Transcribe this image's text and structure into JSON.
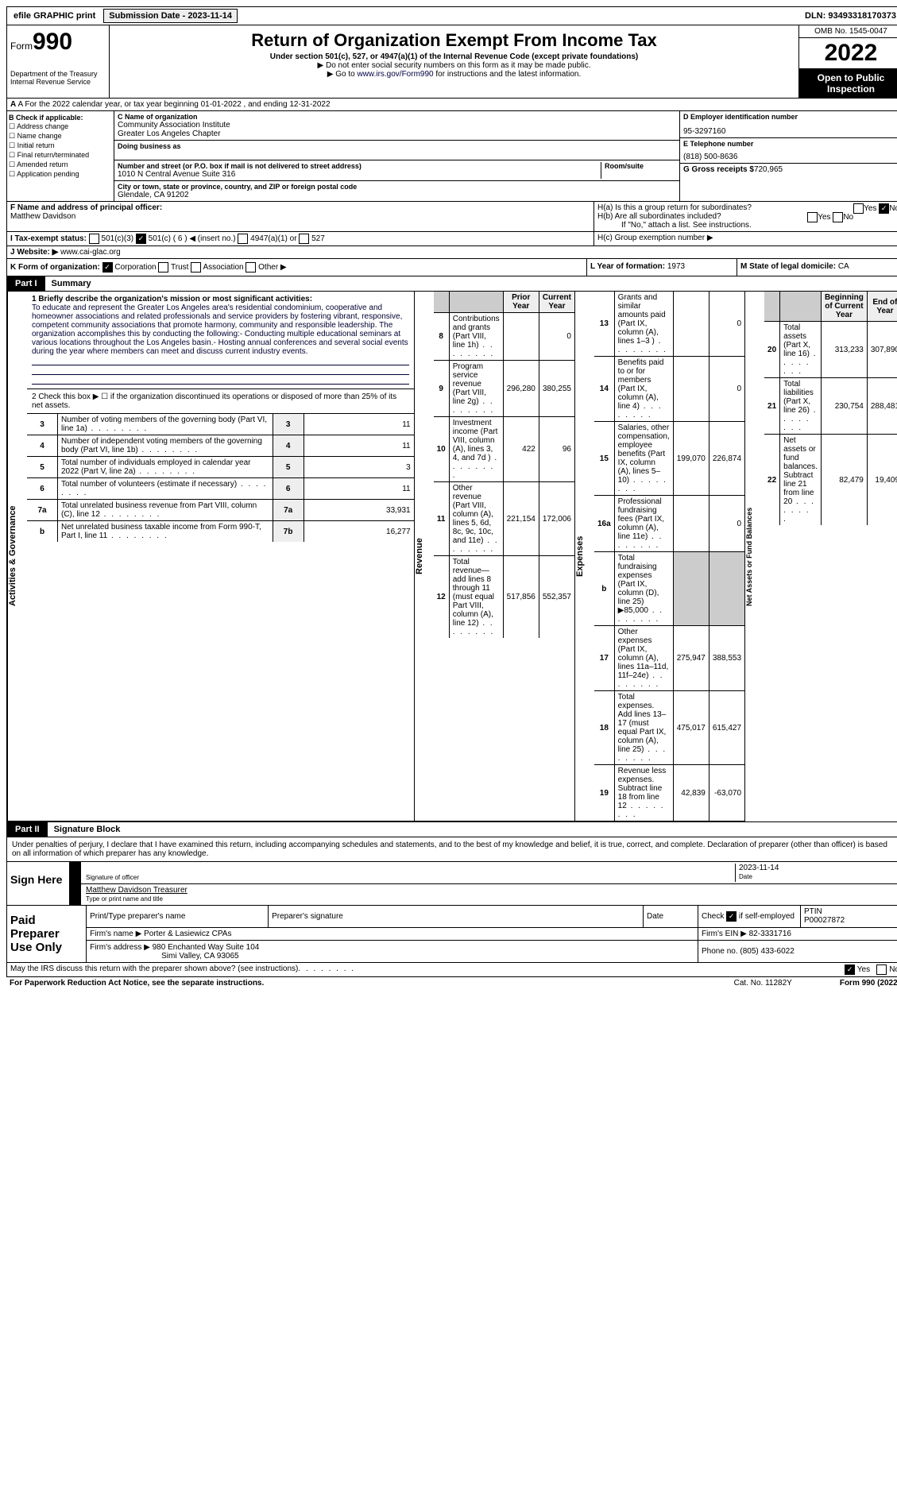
{
  "top": {
    "efile": "efile GRAPHIC print",
    "submit_btn": "Submission Date - 2023-11-14",
    "dln": "DLN: 93493318170373"
  },
  "header": {
    "form_word": "Form",
    "form_no": "990",
    "dept": "Department of the Treasury",
    "irs": "Internal Revenue Service",
    "title": "Return of Organization Exempt From Income Tax",
    "sub": "Under section 501(c), 527, or 4947(a)(1) of the Internal Revenue Code (except private foundations)",
    "note1": "▶ Do not enter social security numbers on this form as it may be made public.",
    "note2": "▶ Go to www.irs.gov/Form990 for instructions and the latest information.",
    "link": "www.irs.gov/Form990",
    "omb": "OMB No. 1545-0047",
    "year": "2022",
    "otp": "Open to Public Inspection"
  },
  "rowA": {
    "text": "A For the 2022 calendar year, or tax year beginning 01-01-2022  , and ending 12-31-2022"
  },
  "colB": {
    "hdr": "B Check if applicable:",
    "items": [
      "Address change",
      "Name change",
      "Initial return",
      "Final return/terminated",
      "Amended return",
      "Application pending"
    ]
  },
  "colC": {
    "name_lbl": "C Name of organization",
    "name1": "Community Association Institute",
    "name2": "Greater Los Angeles Chapter",
    "dba_lbl": "Doing business as",
    "addr_lbl": "Number and street (or P.O. box if mail is not delivered to street address)",
    "room_lbl": "Room/suite",
    "addr": "1010 N Central Avenue Suite 316",
    "city_lbl": "City or town, state or province, country, and ZIP or foreign postal code",
    "city": "Glendale, CA  91202"
  },
  "colD": {
    "ein_lbl": "D Employer identification number",
    "ein": "95-3297160",
    "tel_lbl": "E Telephone number",
    "tel": "(818) 500-8636",
    "gross_lbl": "G Gross receipts $",
    "gross": "720,965"
  },
  "rowF": {
    "f_lbl": "F  Name and address of principal officer:",
    "f_val": "Matthew Davidson",
    "ha": "H(a)  Is this a group return for subordinates?",
    "hb": "H(b)  Are all subordinates included?",
    "hb_note": "If \"No,\" attach a list. See instructions.",
    "hc": "H(c)  Group exemption number ▶"
  },
  "rowI": {
    "i_lbl": "I  Tax-exempt status:",
    "i_501c3": "501(c)(3)",
    "i_501c": "501(c) ( 6 ) ◀ (insert no.)",
    "i_4947": "4947(a)(1) or",
    "i_527": "527"
  },
  "rowJ": {
    "j_lbl": "J  Website: ▶",
    "j_val": "www.cai-glac.org"
  },
  "rowK": {
    "k_lbl": "K Form of organization:",
    "k_corp": "Corporation",
    "k_trust": "Trust",
    "k_assoc": "Association",
    "k_other": "Other ▶",
    "l_lbl": "L Year of formation:",
    "l_val": "1973",
    "m_lbl": "M State of legal domicile:",
    "m_val": "CA"
  },
  "part1": {
    "tag": "Part I",
    "title": "Summary"
  },
  "sec_gov": {
    "label": "Activities & Governance",
    "l1_lbl": "1  Briefly describe the organization's mission or most significant activities:",
    "l1_txt": "To educate and represent the Greater Los Angeles area's residential condominium, cooperative and homeowner associations and related professionals and service providers by fostering vibrant, responsive, competent community associations that promote harmony, community and responsible leadership. The organization accomplishes this by conducting the following:- Conducting multiple educational seminars at various locations throughout the Los Angeles basin.- Hosting annual conferences and several social events during the year where members can meet and discuss current industry events.",
    "l2": "2  Check this box ▶ ☐ if the organization discontinued its operations or disposed of more than 25% of its net assets.",
    "rows": [
      {
        "n": "3",
        "t": "Number of voting members of the governing body (Part VI, line 1a)",
        "bn": "3",
        "v": "11"
      },
      {
        "n": "4",
        "t": "Number of independent voting members of the governing body (Part VI, line 1b)",
        "bn": "4",
        "v": "11"
      },
      {
        "n": "5",
        "t": "Total number of individuals employed in calendar year 2022 (Part V, line 2a)",
        "bn": "5",
        "v": "3"
      },
      {
        "n": "6",
        "t": "Total number of volunteers (estimate if necessary)",
        "bn": "6",
        "v": "11"
      },
      {
        "n": "7a",
        "t": "Total unrelated business revenue from Part VIII, column (C), line 12",
        "bn": "7a",
        "v": "33,931"
      },
      {
        "n": "b",
        "t": "Net unrelated business taxable income from Form 990-T, Part I, line 11",
        "bn": "7b",
        "v": "16,277"
      }
    ]
  },
  "sec_rev": {
    "label": "Revenue",
    "hdr_prior": "Prior Year",
    "hdr_curr": "Current Year",
    "rows": [
      {
        "n": "8",
        "t": "Contributions and grants (Part VIII, line 1h)",
        "p": "",
        "c": "0"
      },
      {
        "n": "9",
        "t": "Program service revenue (Part VIII, line 2g)",
        "p": "296,280",
        "c": "380,255"
      },
      {
        "n": "10",
        "t": "Investment income (Part VIII, column (A), lines 3, 4, and 7d )",
        "p": "422",
        "c": "96"
      },
      {
        "n": "11",
        "t": "Other revenue (Part VIII, column (A), lines 5, 6d, 8c, 9c, 10c, and 11e)",
        "p": "221,154",
        "c": "172,006"
      },
      {
        "n": "12",
        "t": "Total revenue—add lines 8 through 11 (must equal Part VIII, column (A), line 12)",
        "p": "517,856",
        "c": "552,357"
      }
    ]
  },
  "sec_exp": {
    "label": "Expenses",
    "rows": [
      {
        "n": "13",
        "t": "Grants and similar amounts paid (Part IX, column (A), lines 1–3 )",
        "p": "",
        "c": "0"
      },
      {
        "n": "14",
        "t": "Benefits paid to or for members (Part IX, column (A), line 4)",
        "p": "",
        "c": "0"
      },
      {
        "n": "15",
        "t": "Salaries, other compensation, employee benefits (Part IX, column (A), lines 5–10)",
        "p": "199,070",
        "c": "226,874"
      },
      {
        "n": "16a",
        "t": "Professional fundraising fees (Part IX, column (A), line 11e)",
        "p": "",
        "c": "0"
      },
      {
        "n": "b",
        "t": "Total fundraising expenses (Part IX, column (D), line 25) ▶85,000",
        "p": "GRAY",
        "c": "GRAY"
      },
      {
        "n": "17",
        "t": "Other expenses (Part IX, column (A), lines 11a–11d, 11f–24e)",
        "p": "275,947",
        "c": "388,553"
      },
      {
        "n": "18",
        "t": "Total expenses. Add lines 13–17 (must equal Part IX, column (A), line 25)",
        "p": "475,017",
        "c": "615,427"
      },
      {
        "n": "19",
        "t": "Revenue less expenses. Subtract line 18 from line 12",
        "p": "42,839",
        "c": "-63,070"
      }
    ]
  },
  "sec_net": {
    "label": "Net Assets or Fund Balances",
    "hdr_beg": "Beginning of Current Year",
    "hdr_end": "End of Year",
    "rows": [
      {
        "n": "20",
        "t": "Total assets (Part X, line 16)",
        "p": "313,233",
        "c": "307,890"
      },
      {
        "n": "21",
        "t": "Total liabilities (Part X, line 26)",
        "p": "230,754",
        "c": "288,481"
      },
      {
        "n": "22",
        "t": "Net assets or fund balances. Subtract line 21 from line 20",
        "p": "82,479",
        "c": "19,409"
      }
    ]
  },
  "part2": {
    "tag": "Part II",
    "title": "Signature Block"
  },
  "sig": {
    "decl": "Under penalties of perjury, I declare that I have examined this return, including accompanying schedules and statements, and to the best of my knowledge and belief, it is true, correct, and complete. Declaration of preparer (other than officer) is based on all information of which preparer has any knowledge.",
    "sign_here": "Sign Here",
    "sig_lbl": "Signature of officer",
    "date_lbl": "Date",
    "date": "2023-11-14",
    "name": "Matthew Davidson  Treasurer",
    "name_lbl": "Type or print name and title"
  },
  "prep": {
    "title": "Paid Preparer Use Only",
    "h1": "Print/Type preparer's name",
    "h2": "Preparer's signature",
    "h3": "Date",
    "h4_chk": "Check",
    "h4_if": "if self-employed",
    "h5": "PTIN",
    "ptin": "P00027872",
    "firm_lbl": "Firm's name    ▶",
    "firm": "Porter & Lasiewicz CPAs",
    "ein_lbl": "Firm's EIN ▶",
    "ein": "82-3331716",
    "addr_lbl": "Firm's address ▶",
    "addr1": "980 Enchanted Way Suite 104",
    "addr2": "Simi Valley, CA  93065",
    "phone_lbl": "Phone no.",
    "phone": "(805) 433-6022"
  },
  "footer": {
    "q": "May the IRS discuss this return with the preparer shown above? (see instructions)",
    "yes": "Yes",
    "no": "No",
    "pra": "For Paperwork Reduction Act Notice, see the separate instructions.",
    "cat": "Cat. No. 11282Y",
    "form": "Form 990 (2022)"
  }
}
